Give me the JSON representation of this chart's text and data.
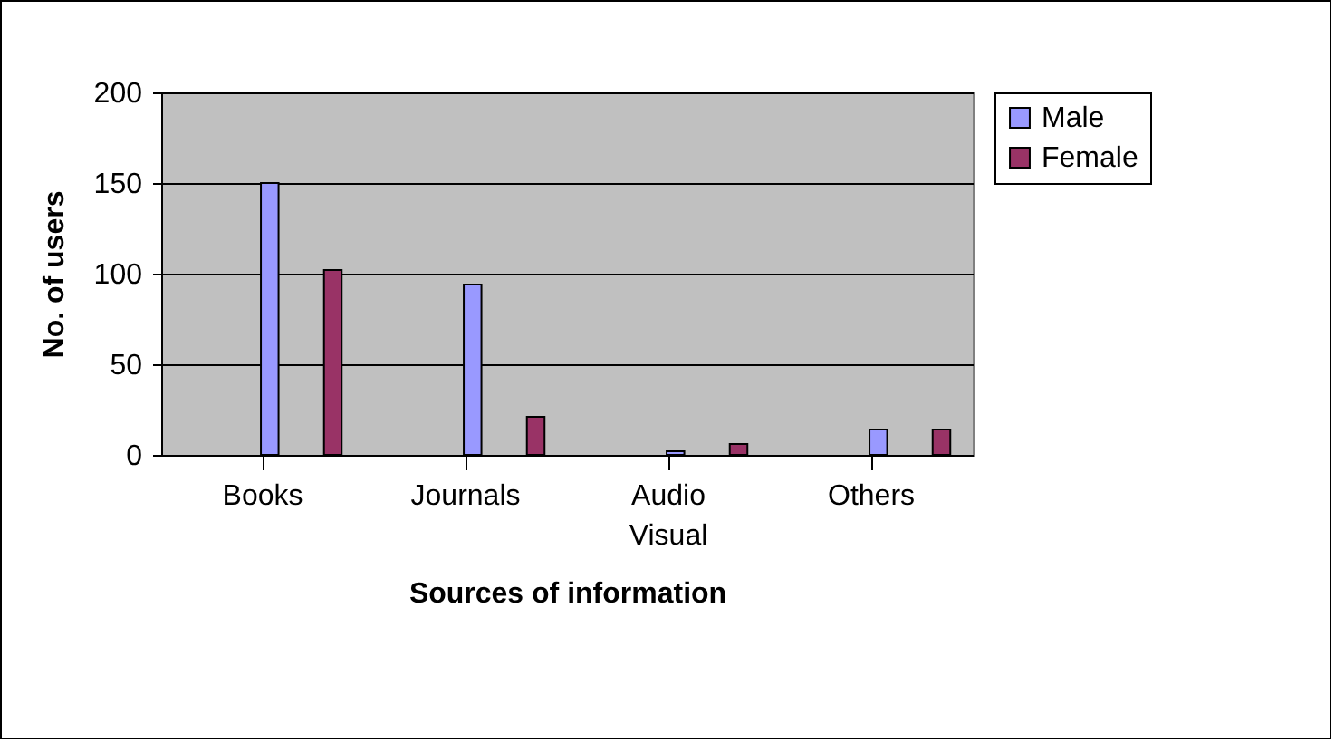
{
  "chart_data": {
    "type": "bar",
    "xlabel": "Sources of information",
    "ylabel": "No. of users",
    "categories": [
      "Books",
      "Journals",
      "Audio Visual",
      "Others"
    ],
    "series": [
      {
        "name": "Male",
        "color": "#9999ff",
        "values": [
          150,
          94,
          2,
          14
        ]
      },
      {
        "name": "Female",
        "color": "#993366",
        "values": [
          102,
          21,
          6,
          14
        ]
      }
    ],
    "ylim": [
      0,
      200
    ],
    "yticks": [
      0,
      50,
      100,
      150,
      200
    ],
    "grid": "y",
    "legend": "right"
  }
}
